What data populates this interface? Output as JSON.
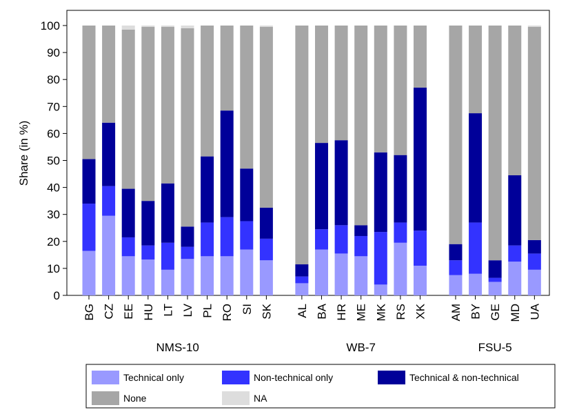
{
  "chart_data": {
    "type": "stacked-bar",
    "y_label": "Share (in %)",
    "groups": [
      {
        "label": "NMS-10",
        "categories": [
          "BG",
          "CZ",
          "EE",
          "HU",
          "LT",
          "LV",
          "PL",
          "RO",
          "SI",
          "SK"
        ]
      },
      {
        "label": "WB-7",
        "categories": [
          "AL",
          "BA",
          "HR",
          "ME",
          "MK",
          "RS",
          "XK"
        ]
      },
      {
        "label": "FSU-5",
        "categories": [
          "AM",
          "BY",
          "GE",
          "MD",
          "UA"
        ]
      }
    ],
    "series": [
      {
        "name": "Technical only",
        "color": "#9999ff",
        "values": [
          16.5,
          29.5,
          14.5,
          13.3,
          9.5,
          13.5,
          14.5,
          14.5,
          17,
          13,
          4.5,
          17,
          15.5,
          14.5,
          4,
          19.5,
          11,
          7.5,
          8,
          5,
          12.5,
          9.5
        ]
      },
      {
        "name": "Non-technical only",
        "color": "#3333ff",
        "values": [
          17.5,
          11,
          7,
          5.2,
          10,
          4.5,
          12.5,
          14.5,
          10.5,
          8,
          2.5,
          7.5,
          10.5,
          7.5,
          19.5,
          7.5,
          13,
          5.5,
          19,
          1.5,
          6,
          6
        ]
      },
      {
        "name": "Technical & non-technical",
        "color": "#000099",
        "values": [
          16.5,
          23.5,
          18,
          16.5,
          22,
          7.5,
          24.5,
          39.5,
          19.5,
          11.5,
          4.5,
          32,
          31.5,
          4,
          29.5,
          25,
          53,
          6,
          40.5,
          6.5,
          26,
          5
        ]
      },
      {
        "name": "None",
        "color": "#a6a6a6",
        "values": [
          49.5,
          36,
          59,
          64.5,
          58,
          73.5,
          48.5,
          31.5,
          53,
          67,
          88.5,
          43.5,
          42.5,
          74,
          47,
          48,
          23,
          81,
          32.5,
          87,
          55.5,
          79
        ]
      },
      {
        "name": "NA",
        "color": "#dddddd",
        "values": [
          0,
          0,
          1.5,
          0.5,
          0.5,
          1,
          0,
          0,
          0,
          0.5,
          0,
          0,
          0,
          0,
          0,
          0,
          0,
          0,
          0,
          0,
          0,
          0.5
        ]
      }
    ],
    "ylim": [
      0,
      100
    ],
    "yticks": [
      0,
      10,
      20,
      30,
      40,
      50,
      60,
      70,
      80,
      90,
      100
    ]
  }
}
